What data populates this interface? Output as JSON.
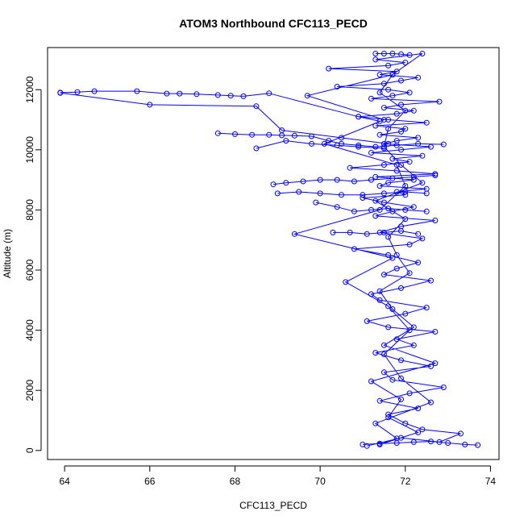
{
  "chart_data": {
    "type": "scatter",
    "title": "ATOM3 Northbound CFC113_PECD",
    "xlabel": "CFC113_PECD",
    "ylabel": "Altitude (m)",
    "xlim": [
      63.6,
      74.2
    ],
    "ylim": [
      -300,
      13400
    ],
    "xticks": [
      64,
      66,
      68,
      70,
      72,
      74
    ],
    "yticks": [
      0,
      2000,
      4000,
      6000,
      8000,
      10000,
      12000
    ],
    "grid": false,
    "legend": "none",
    "marker": "open-circle",
    "connected": true,
    "series_color": "#0000ff",
    "series": [
      {
        "x": [
          71.1,
          71.9,
          72.8,
          73.3,
          72.4,
          72.0,
          71.6,
          72.3,
          71.4,
          72.1,
          72.9,
          71.7,
          71.5,
          72.6,
          71.9,
          71.3,
          72.2,
          71.8,
          72.7,
          71.6,
          71.1,
          72.0,
          72.5,
          71.4,
          71.2,
          71.9,
          72.6,
          71.5,
          71.8,
          72.3,
          71.6,
          70.8,
          72.1,
          72.4,
          71.4,
          71.9,
          72.7,
          71.3,
          71.7,
          72.2,
          71.5,
          71.0,
          72.0,
          71.8,
          72.5,
          71.4,
          71.6,
          72.2,
          71.3,
          72.7,
          71.8,
          70.7,
          71.5,
          72.1,
          71.7,
          72.4,
          71.2,
          71.9,
          72.6,
          71.5,
          71.8,
          72.3,
          71.4,
          71.9,
          72.0,
          71.3,
          72.5,
          71.6,
          70.9,
          71.8,
          72.2,
          71.5,
          71.9,
          72.8,
          71.2,
          71.7,
          72.1,
          71.6,
          70.4,
          71.5,
          71.9,
          72.3,
          71.4,
          71.8,
          70.2,
          71.6,
          72.0,
          71.3,
          72.4,
          71.7,
          69.7,
          71.5,
          70.1,
          71.8,
          72.0,
          71.4,
          69.4,
          71.7,
          70.6,
          71.6,
          72.1,
          71.5,
          71.9,
          72.6,
          71.3,
          71.8,
          71.4,
          72.3,
          71.6,
          71.9,
          71.2,
          72.7,
          71.5,
          72.2,
          71.7,
          71.4,
          72.1,
          71.8,
          71.6,
          72.0,
          71.3,
          72.4,
          71.9,
          71.5,
          71.6,
          72.0,
          71.4,
          71.7
        ],
        "y": [
          150,
          420,
          280,
          560,
          700,
          900,
          1200,
          1400,
          1650,
          1900,
          2100,
          2350,
          2600,
          2800,
          3000,
          3250,
          3500,
          3700,
          3950,
          4100,
          4300,
          4550,
          4750,
          5000,
          5200,
          5400,
          5650,
          5850,
          6050,
          6250,
          6500,
          6700,
          6850,
          7050,
          7250,
          7450,
          7650,
          7800,
          7950,
          8100,
          8250,
          8400,
          8500,
          8600,
          8700,
          8800,
          8900,
          9000,
          9100,
          9200,
          9300,
          9400,
          9500,
          9600,
          9700,
          9800,
          9900,
          10000,
          10100,
          10200,
          10300,
          10400,
          10500,
          10600,
          10700,
          10800,
          10900,
          11000,
          11100,
          11200,
          11300,
          11400,
          11500,
          11600,
          11700,
          11800,
          11900,
          12000,
          12100,
          12200,
          12300,
          12400,
          12500,
          12600,
          12700,
          12800,
          12900,
          13000,
          13200,
          12500,
          11800,
          11000,
          10200,
          9500,
          8800,
          8000,
          7200,
          6400,
          5600,
          4800,
          4000,
          3200,
          2400,
          1600,
          900,
          400,
          200,
          600,
          1100,
          1700,
          2300,
          2900,
          3500,
          4100,
          4700,
          5300,
          5900,
          6500,
          7100,
          7700,
          8300,
          8900,
          9500,
          10100,
          10700,
          11300,
          11900,
          12500
        ]
      },
      {
        "x": [
          63.9,
          64.3,
          64.7,
          65.7,
          66.4,
          66.7,
          67.1,
          67.6,
          67.9,
          68.2,
          68.8,
          70.9,
          71.4
        ],
        "y": [
          11900,
          11920,
          11950,
          11950,
          11870,
          11870,
          11850,
          11820,
          11800,
          11780,
          11880,
          11100,
          10950
        ]
      },
      {
        "x": [
          63.9,
          66.0,
          68.5,
          69.1,
          70.5,
          71.6
        ],
        "y": [
          11890,
          11500,
          11450,
          10650,
          10400,
          10200
        ]
      },
      {
        "x": [
          67.6,
          68.0,
          68.4,
          68.8,
          69.1,
          69.4,
          69.8,
          70.2,
          70.5,
          70.9,
          71.3,
          71.8,
          72.3,
          72.9
        ],
        "y": [
          10550,
          10520,
          10500,
          10500,
          10480,
          10470,
          10450,
          10300,
          10200,
          10150,
          10100,
          10150,
          10200,
          10180
        ]
      },
      {
        "x": [
          68.5,
          69.2,
          69.8,
          70.4,
          70.9,
          71.5
        ],
        "y": [
          10050,
          10300,
          10200,
          10150,
          10100,
          10050
        ]
      },
      {
        "x": [
          68.9,
          69.2,
          69.6,
          70.0,
          70.4,
          70.8,
          71.2,
          71.7,
          72.2,
          72.7
        ],
        "y": [
          8850,
          8900,
          8950,
          9000,
          9000,
          8950,
          9000,
          9050,
          9100,
          9150
        ]
      },
      {
        "x": [
          69.0,
          69.5,
          70.0,
          70.5,
          71.0,
          71.5,
          72.0,
          72.5
        ],
        "y": [
          8550,
          8600,
          8550,
          8500,
          8500,
          8550,
          8600,
          8550
        ]
      },
      {
        "x": [
          69.9,
          70.4,
          70.8,
          71.2,
          71.6,
          72.0,
          72.5
        ],
        "y": [
          8250,
          8100,
          7950,
          8000,
          8050,
          8000,
          7950
        ]
      },
      {
        "x": [
          70.3,
          70.7,
          71.1,
          71.5,
          71.9,
          72.3
        ],
        "y": [
          7250,
          7250,
          7200,
          7250,
          7300,
          7200
        ]
      },
      {
        "x": [
          71.0,
          71.4,
          71.8,
          72.2,
          72.6,
          73.0,
          73.4,
          73.7
        ],
        "y": [
          200,
          230,
          250,
          280,
          300,
          250,
          200,
          180
        ]
      },
      {
        "x": [
          71.3,
          71.5,
          71.7,
          71.9,
          72.1
        ],
        "y": [
          13200,
          13200,
          13200,
          13180,
          13150
        ]
      }
    ]
  }
}
